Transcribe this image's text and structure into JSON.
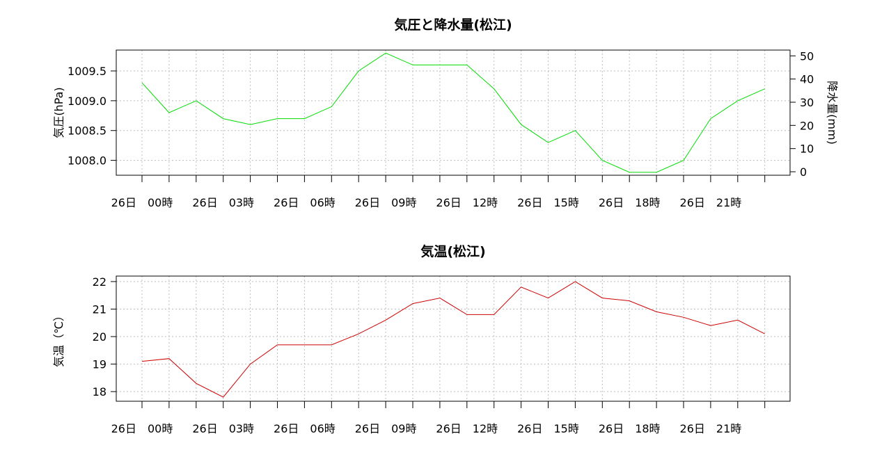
{
  "chart_data": [
    {
      "type": "line",
      "title": "気圧と降水量(松江)",
      "ylabel": "気圧(hPa)",
      "y2label": "降水量(mm)",
      "ylim": [
        1007.75,
        1009.85
      ],
      "yticks": [
        "1008.0",
        "1008.5",
        "1009.0",
        "1009.5"
      ],
      "ytick_values": [
        1008.0,
        1008.5,
        1009.0,
        1009.5
      ],
      "y2lim": [
        -1.5,
        52.5
      ],
      "y2ticks": [
        "0",
        "10",
        "20",
        "30",
        "40",
        "50"
      ],
      "y2tick_values": [
        0,
        10,
        20,
        30,
        40,
        50
      ],
      "x_tick_labels": [
        "26日　00時",
        "26日　03時",
        "26日　06時",
        "26日　09時",
        "26日　12時",
        "26日　15時",
        "26日　18時",
        "26日　21時"
      ],
      "grid": true,
      "series": [
        {
          "color": "#00dd00",
          "x": [
            0,
            1,
            2,
            3,
            4,
            5,
            6,
            7,
            8,
            9,
            10,
            11,
            12,
            13,
            14,
            15,
            16,
            17,
            18,
            19,
            20,
            21,
            22,
            23
          ],
          "values": [
            1009.3,
            1008.8,
            1009.0,
            1008.7,
            1008.6,
            1008.7,
            1008.7,
            1008.9,
            1009.5,
            1009.8,
            1009.6,
            1009.6,
            1009.6,
            1009.2,
            1008.6,
            1008.3,
            1008.5,
            1008.0,
            1007.8,
            1007.8,
            1008.0,
            1008.7,
            1009.0,
            1009.2
          ]
        }
      ]
    },
    {
      "type": "line",
      "title": "気温(松江)",
      "ylabel": "気温（℃）",
      "ylim": [
        17.65,
        22.2
      ],
      "yticks": [
        "18",
        "19",
        "20",
        "21",
        "22"
      ],
      "ytick_values": [
        18,
        19,
        20,
        21,
        22
      ],
      "x_tick_labels": [
        "26日　00時",
        "26日　03時",
        "26日　06時",
        "26日　09時",
        "26日　12時",
        "26日　15時",
        "26日　18時",
        "26日　21時"
      ],
      "grid": true,
      "series": [
        {
          "color": "#cc0000",
          "x": [
            0,
            1,
            2,
            3,
            4,
            5,
            6,
            7,
            8,
            9,
            10,
            11,
            12,
            13,
            14,
            15,
            16,
            17,
            18,
            19,
            20,
            21,
            22,
            23
          ],
          "values": [
            19.1,
            19.2,
            18.3,
            17.8,
            19.0,
            19.7,
            19.7,
            19.7,
            20.1,
            20.6,
            21.2,
            21.4,
            20.8,
            20.8,
            21.8,
            21.4,
            22.0,
            21.4,
            21.3,
            20.9,
            20.7,
            20.4,
            20.6,
            20.1
          ]
        }
      ]
    }
  ]
}
